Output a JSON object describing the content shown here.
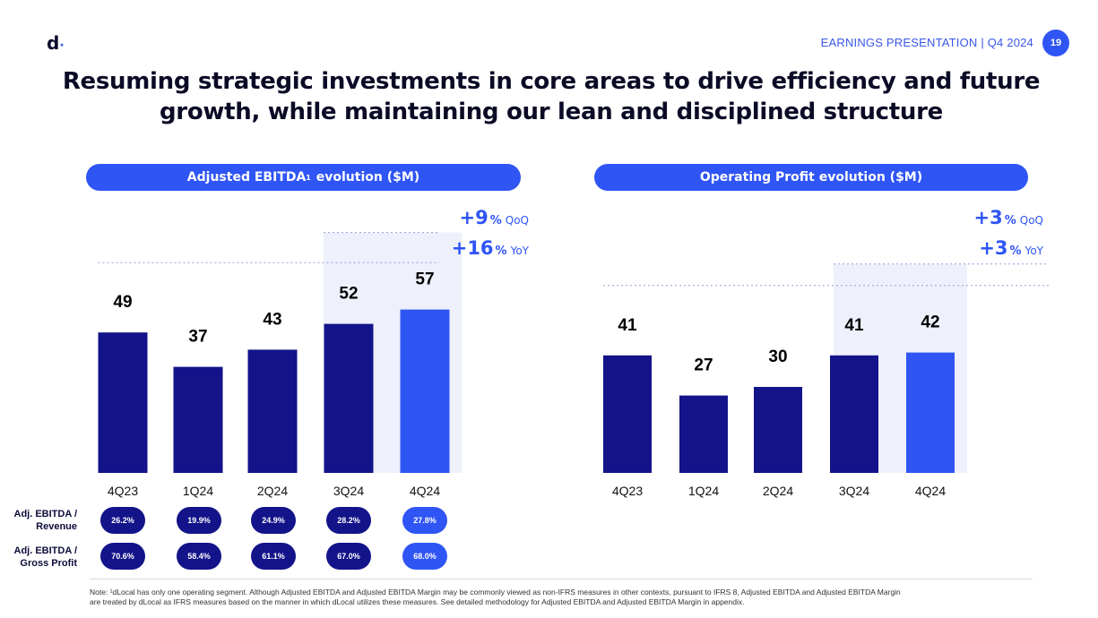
{
  "logo": {
    "letter": "d",
    "dot": "·"
  },
  "header": {
    "label": "EARNINGS PRESENTATION | Q4 2024",
    "page": "19"
  },
  "title": {
    "line1": "Resuming strategic investments in core areas to drive efficiency and future",
    "line2": "growth, while maintaining our lean and disciplined structure"
  },
  "colors": {
    "bar": "#13138a",
    "highlight": "#2f55f5",
    "growth_text": "#2f55f5"
  },
  "chart_data": [
    {
      "type": "bar",
      "title": "Adjusted EBITDA",
      "title_sup": "1",
      "title_suffix": " evolution ($M)",
      "categories": [
        "4Q23",
        "1Q24",
        "2Q24",
        "3Q24",
        "4Q24"
      ],
      "values": [
        49,
        37,
        43,
        52,
        57
      ],
      "labels": [
        "49",
        "37",
        "43",
        "52",
        "57"
      ],
      "highlight_index": 4,
      "ylim": [
        0,
        70
      ],
      "growth": [
        {
          "value": "+9",
          "unit": "%",
          "label": "QoQ"
        },
        {
          "value": "+16",
          "unit": "%",
          "label": "YoY"
        }
      ]
    },
    {
      "type": "bar",
      "title": "Operating Profit evolution ($M)",
      "title_sup": "",
      "title_suffix": "",
      "categories": [
        "4Q23",
        "1Q24",
        "2Q24",
        "3Q24",
        "4Q24"
      ],
      "values": [
        41,
        27,
        30,
        41,
        42
      ],
      "labels": [
        "41",
        "27",
        "30",
        "41",
        "42"
      ],
      "highlight_index": 4,
      "ylim": [
        0,
        70
      ],
      "growth": [
        {
          "value": "+3",
          "unit": "%",
          "label": "QoQ"
        },
        {
          "value": "+3",
          "unit": "%",
          "label": "YoY"
        }
      ]
    }
  ],
  "metrics": [
    {
      "label1": "Adj. EBITDA /",
      "label2": "Revenue",
      "values": [
        "26.2%",
        "19.9%",
        "24.9%",
        "28.2%",
        "27.8%"
      ]
    },
    {
      "label1": "Adj. EBITDA /",
      "label2": "Gross Profit",
      "values": [
        "70.6%",
        "58.4%",
        "61.1%",
        "67.0%",
        "68.0%"
      ]
    }
  ],
  "note": {
    "line1": "Note: ¹dLocal has only one operating segment. Although Adjusted EBITDA and Adjusted EBITDA Margin may be commonly viewed as non-IFRS measures in other contexts, pursuant to IFRS 8, Adjusted EBITDA and Adjusted EBITDA Margin",
    "line2": "are treated by dLocal as IFRS measures based on the manner in which dLocal utilizes these measures. See detailed methodology for Adjusted EBITDA and Adjusted EBITDA Margin in appendix."
  }
}
